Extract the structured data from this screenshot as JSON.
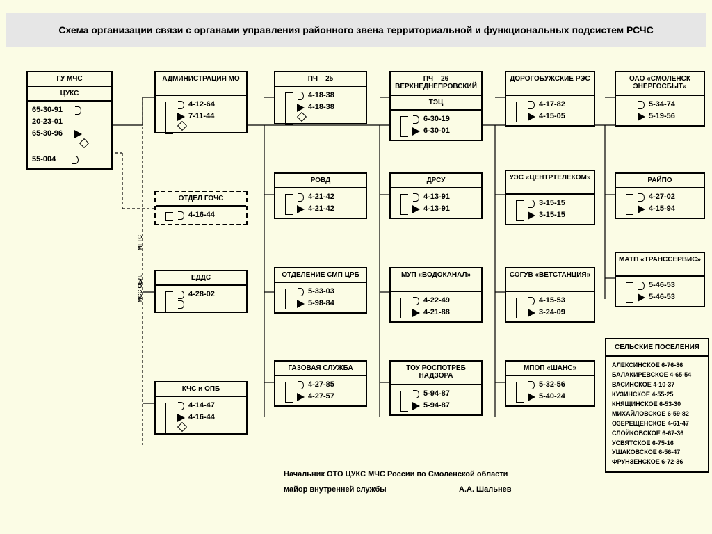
{
  "title": "Схема организации связи с органами управления районного звена территориальной и функциональных подсистем РСЧС",
  "vlabels": {
    "mgts": "МГТС",
    "mss": "МСС ОБЛ."
  },
  "boxes": {
    "gu": {
      "hdr": "ГУ МЧС",
      "sub": "ЦУКС",
      "phones": [
        "65-30-91",
        "20-23-01",
        "65-30-96",
        "",
        "55-004"
      ]
    },
    "admin": {
      "hdr": "АДМИНИСТРАЦИЯ МО",
      "phones": [
        "4-12-64",
        "7-11-44"
      ]
    },
    "gochs": {
      "hdr": "ОТДЕЛ ГОЧС",
      "phones": [
        "4-16-44"
      ]
    },
    "edds": {
      "hdr": "ЕДДС",
      "phones": [
        "4-28-02"
      ]
    },
    "kchs": {
      "hdr": "КЧС и ОПБ",
      "phones": [
        "4-14-47",
        "4-16-44"
      ]
    },
    "pch25": {
      "hdr": "ПЧ – 25",
      "phones": [
        "4-18-38",
        "4-18-38"
      ]
    },
    "rovd": {
      "hdr": "РОВД",
      "phones": [
        "4-21-42",
        "4-21-42"
      ]
    },
    "smp": {
      "hdr": "ОТДЕЛЕНИЕ СМП ЦРБ",
      "phones": [
        "5-33-03",
        "5-98-84"
      ]
    },
    "gaz": {
      "hdr": "ГАЗОВАЯ СЛУЖБА",
      "phones": [
        "4-27-85",
        "4-27-57"
      ]
    },
    "pch26": {
      "hdr": "ПЧ – 26 ВЕРХНЕДНЕПРОВСКИЙ",
      "sub": "ТЭЦ",
      "phones": [
        "6-30-19",
        "6-30-01"
      ]
    },
    "drsu": {
      "hdr": "ДРСУ",
      "phones": [
        "4-13-91",
        "4-13-91"
      ]
    },
    "vodo": {
      "hdr": "МУП «ВОДОКАНАЛ»",
      "phones": [
        "4-22-49",
        "4-21-88"
      ]
    },
    "rospot": {
      "hdr": "ТОУ РОСПОТРЕБ НАДЗОРА",
      "phones": [
        "5-94-87",
        "5-94-87"
      ]
    },
    "res": {
      "hdr": "ДОРОГОБУЖСКИЕ РЭС",
      "phones": [
        "4-17-82",
        "4-15-05"
      ]
    },
    "ues": {
      "hdr": "УЭС «ЦЕНТРТЕЛЕКОМ»",
      "phones": [
        "3-15-15",
        "3-15-15"
      ]
    },
    "soguv": {
      "hdr": "СОГУВ «ВЕТСТАНЦИЯ»",
      "phones": [
        "4-15-53",
        "3-24-09"
      ]
    },
    "mpop": {
      "hdr": "МПОП «ШАНС»",
      "phones": [
        "5-32-56",
        "5-40-24"
      ]
    },
    "energo": {
      "hdr": "ОАО «СМОЛЕНСК ЭНЕРГОСБЫТ»",
      "phones": [
        "5-34-74",
        "5-19-56"
      ]
    },
    "raipo": {
      "hdr": "РАЙПО",
      "phones": [
        "4-27-02",
        "4-15-94"
      ]
    },
    "matp": {
      "hdr": "МАТП «ТРАНССЕРВИС»",
      "phones": [
        "5-46-53",
        "5-46-53"
      ]
    }
  },
  "rural": {
    "hdr": "СЕЛЬСКИЕ ПОСЕЛЕНИЯ",
    "items": [
      "АЛЕКСИНСКОЕ 6-76-86",
      "БАЛАКИРЕВСКОЕ 4-65-54",
      "ВАСИНСКОЕ 4-10-37",
      "КУЗИНСКОЕ 4-55-25",
      "КНЯЩИНСКОЕ 6-53-30",
      "МИХАЙЛОВСКОЕ 6-59-82",
      "ОЗЕРЕЩЕНСКОЕ 4-61-47",
      "СЛОЙКОВСКОЕ 6-67-36",
      "УСВЯТСКОЕ 6-75-16",
      "УШАКОВСКОЕ 6-56-47",
      "ФРУНЗЕНСКОЕ 6-72-36"
    ]
  },
  "footer": {
    "l1": "Начальник ОТО ЦУКС МЧС России по Смоленской области",
    "l2a": "майор внутренней службы",
    "l2b": "А.А. Шальнев"
  },
  "layout": {
    "cols": {
      "c0": 38,
      "c1": 222,
      "c2": 394,
      "c3": 560,
      "c4": 726,
      "c5": 884
    },
    "w": {
      "c0": 120,
      "c1": 130,
      "c2": 130,
      "c3": 130,
      "c4": 126,
      "c5": 126
    }
  },
  "colors": {
    "bg": "#fbfce5",
    "banner": "#e6e6e6",
    "line": "#000000"
  }
}
